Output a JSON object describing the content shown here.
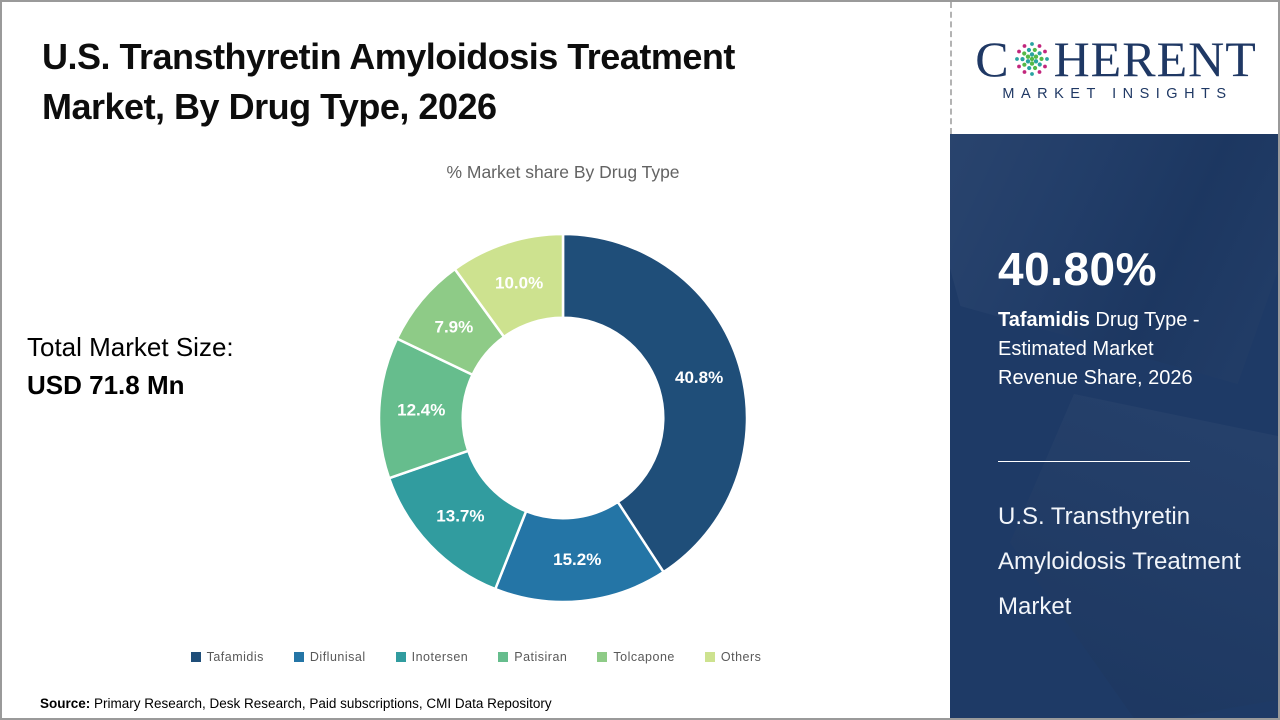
{
  "header": {
    "title": "U.S. Transthyretin Amyloidosis Treatment Market, By Drug Type, 2026"
  },
  "logo": {
    "brand_first_letter": "C",
    "brand_rest": "HERENT",
    "tagline": "MARKET INSIGHTS",
    "navy": "#1f3864",
    "globe_teal": "#29a3a0",
    "globe_green": "#54b948",
    "globe_magenta": "#c2267d"
  },
  "total_market": {
    "label": "Total Market Size:",
    "value": "USD 71.8 Mn"
  },
  "source": {
    "label": "Source:",
    "text": " Primary Research, Desk Research, Paid subscriptions, CMI Data Repository"
  },
  "side_panel": {
    "stat_value": "40.80%",
    "stat_desc_bold": "Tafamidis",
    "stat_desc_rest": " Drug Type - Estimated Market Revenue Share, 2026",
    "market_name": "U.S. Transthyretin Amyloidosis Treatment Market",
    "bg_color": "#1e3a66"
  },
  "chart_data": {
    "type": "pie",
    "donut": true,
    "title": "% Market share By Drug Type",
    "categories": [
      "Tafamidis",
      "Diflunisal",
      "Inotersen",
      "Patisiran",
      "Tolcapone",
      "Others"
    ],
    "values": [
      40.8,
      15.2,
      13.7,
      12.4,
      7.9,
      10.0
    ],
    "colors": [
      "#1f4e79",
      "#2475a6",
      "#319c9f",
      "#66bd8d",
      "#8ecb87",
      "#cde28f"
    ],
    "unit": "%",
    "start_angle_deg": 0,
    "direction": "clockwise",
    "inner_radius_ratio": 0.545,
    "legend_position": "bottom",
    "label_color": "#ffffff"
  }
}
